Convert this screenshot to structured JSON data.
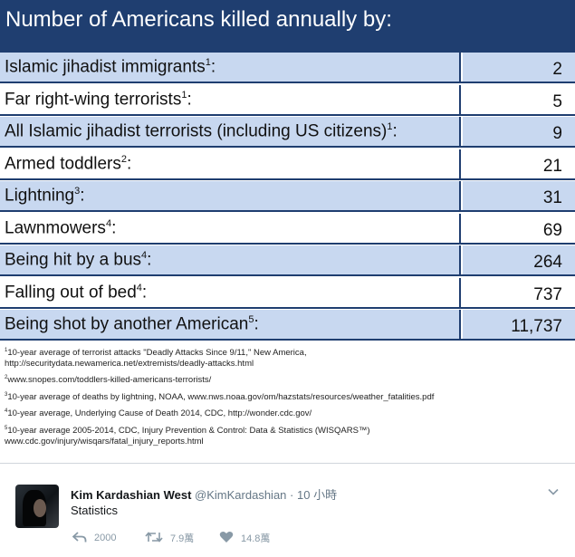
{
  "infographic": {
    "title": "Number of Americans killed annually by:",
    "rows": [
      {
        "label": "Islamic jihadist immigrants",
        "sup": "1",
        "suffix": ":",
        "value": "2"
      },
      {
        "label": "Far right-wing terrorists",
        "sup": "1",
        "suffix": ":",
        "value": "5"
      },
      {
        "label": "All Islamic jihadist terrorists (including US citizens)",
        "sup": "1",
        "suffix": ":",
        "value": "9"
      },
      {
        "label": "Armed toddlers",
        "sup": "2",
        "suffix": ":",
        "value": "21"
      },
      {
        "label": "Lightning",
        "sup": "3",
        "suffix": ":",
        "value": "31"
      },
      {
        "label": "Lawnmowers",
        "sup": "4",
        "suffix": ":",
        "value": "69"
      },
      {
        "label": "Being hit by a bus",
        "sup": "4",
        "suffix": ":",
        "value": "264"
      },
      {
        "label": "Falling out of bed",
        "sup": "4",
        "suffix": ":",
        "value": "737"
      },
      {
        "label": "Being shot by another American",
        "sup": "5",
        "suffix": ":",
        "value": "11,737"
      }
    ],
    "footnotes": {
      "fn1_line1": "10-year average of terrorist attacks \"Deadly Attacks Since 9/11,\" New America,",
      "fn1_line2": "http://securitydata.newamerica.net/extremists/deadly-attacks.html",
      "fn2": "www.snopes.com/toddlers-killed-americans-terrorists/",
      "fn3": "10-year average of deaths by lightning, NOAA, www.nws.noaa.gov/om/hazstats/resources/weather_fatalities.pdf",
      "fn4": "10-year average, Underlying Cause of Death 2014, CDC, http://wonder.cdc.gov/",
      "fn5_line1": "10-year average 2005-2014, CDC, Injury Prevention & Control: Data & Statistics (WISQARS™)",
      "fn5_line2": "www.cdc.gov/injury/wisqars/fatal_injury_reports.html",
      "sup1": "1",
      "sup2": "2",
      "sup3": "3",
      "sup4": "4",
      "sup5": "5"
    }
  },
  "tweet": {
    "display_name": "Kim Kardashian West",
    "handle": "@KimKardashian",
    "separator": "·",
    "time": "10 小時",
    "text": "Statistics",
    "reply_count": "2000",
    "retweet_count": "7.9萬",
    "like_count": "14.8萬",
    "icons": {
      "reply": "reply-icon",
      "retweet": "retweet-icon",
      "like": "heart-icon",
      "menu": "chevron-down-icon"
    },
    "colors": {
      "icon": "#8899a6",
      "name": "#14171a",
      "muted": "#657786"
    }
  },
  "colors": {
    "header_bg": "#1f3e70",
    "row_alt": "#c8d8f0"
  }
}
